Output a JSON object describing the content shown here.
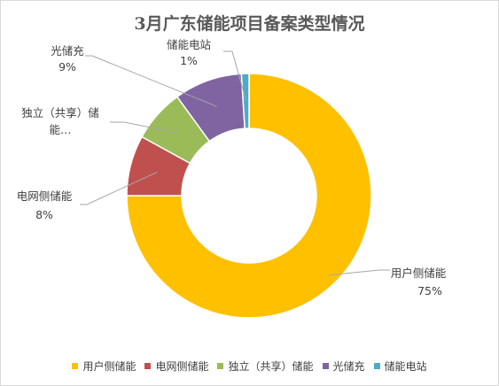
{
  "chart_data": {
    "type": "pie",
    "variant": "donut",
    "title": "3月广东储能项目备案类型情况",
    "categories": [
      "用户侧储能",
      "电网侧储能",
      "独立（共享）储能",
      "光储充",
      "储能电站"
    ],
    "values": [
      75,
      8,
      7,
      9,
      1
    ],
    "labels": [
      {
        "name": "用户侧储能",
        "pct": "75%"
      },
      {
        "name": "电网侧储能",
        "pct": "8%"
      },
      {
        "name": "独立（共享）储能",
        "name_line1": "独立（共享）储",
        "name_line2": "能…"
      },
      {
        "name": "光储充",
        "pct": "9%"
      },
      {
        "name": "储能电站",
        "pct": "1%"
      }
    ],
    "colors": [
      "#FFC000",
      "#C0504D",
      "#9BBB59",
      "#8064A2",
      "#4BACC6"
    ],
    "legend": {
      "position": "bottom",
      "items": [
        "用户侧储能",
        "电网侧储能",
        "独立（共享）储能",
        "光储充",
        "储能电站"
      ]
    }
  }
}
